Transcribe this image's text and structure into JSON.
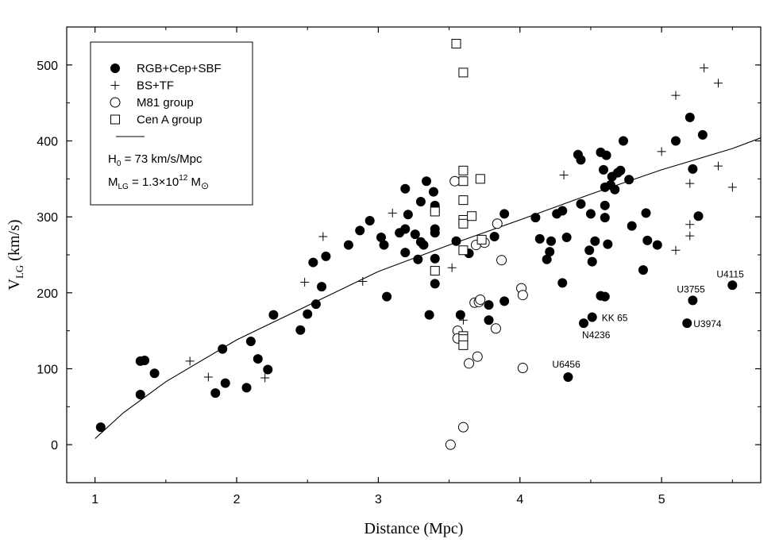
{
  "chart_data": {
    "type": "scatter",
    "xlabel": "Distance (Mpc)",
    "ylabel_main": "V",
    "ylabel_sub": "LG",
    "ylabel_unit": " (km/s)",
    "xlim": [
      0.8,
      5.7
    ],
    "ylim": [
      -50,
      550
    ],
    "xticks": [
      1,
      2,
      3,
      4,
      5
    ],
    "yticks": [
      0,
      100,
      200,
      300,
      400,
      500
    ],
    "grid": false,
    "legend_position": "top-left",
    "legend": [
      {
        "label": "RGB+Cep+SBF",
        "marker": "filled-circle"
      },
      {
        "label": "BS+TF",
        "marker": "plus"
      },
      {
        "label": "M81 group",
        "marker": "open-circle"
      },
      {
        "label": "Cen A group",
        "marker": "open-square"
      }
    ],
    "legend_line": "",
    "legend_h0": "H₀ = 73 km/s/Mpc",
    "legend_h0_parts": {
      "a": "H",
      "sub": "0",
      "b": " = 73 km/s/Mpc"
    },
    "legend_mlg_parts": {
      "a": "M",
      "sub": "LG",
      "b": " = 1.3×10",
      "sup": "12",
      "c": " M",
      "sub2": "⊙"
    },
    "series": [
      {
        "name": "RGB+Cep+SBF",
        "marker": "filled-circle",
        "points": [
          [
            1.04,
            23
          ],
          [
            1.32,
            66
          ],
          [
            1.32,
            110
          ],
          [
            1.35,
            111
          ],
          [
            1.42,
            94
          ],
          [
            1.85,
            68
          ],
          [
            1.9,
            126
          ],
          [
            1.92,
            81
          ],
          [
            2.07,
            75
          ],
          [
            2.1,
            136
          ],
          [
            2.15,
            113
          ],
          [
            2.22,
            99
          ],
          [
            2.26,
            171
          ],
          [
            2.45,
            151
          ],
          [
            2.5,
            172
          ],
          [
            2.54,
            240
          ],
          [
            2.56,
            185
          ],
          [
            2.6,
            208
          ],
          [
            2.63,
            248
          ],
          [
            2.79,
            263
          ],
          [
            2.87,
            282
          ],
          [
            2.94,
            295
          ],
          [
            3.02,
            273
          ],
          [
            3.04,
            263
          ],
          [
            3.06,
            195
          ],
          [
            3.15,
            279
          ],
          [
            3.19,
            253
          ],
          [
            3.19,
            284
          ],
          [
            3.19,
            337
          ],
          [
            3.21,
            303
          ],
          [
            3.26,
            277
          ],
          [
            3.28,
            244
          ],
          [
            3.3,
            320
          ],
          [
            3.3,
            267
          ],
          [
            3.32,
            263
          ],
          [
            3.34,
            347
          ],
          [
            3.36,
            171
          ],
          [
            3.39,
            333
          ],
          [
            3.4,
            315
          ],
          [
            3.4,
            307
          ],
          [
            3.4,
            284
          ],
          [
            3.4,
            279
          ],
          [
            3.4,
            245
          ],
          [
            3.4,
            212
          ],
          [
            3.55,
            268
          ],
          [
            3.58,
            171
          ],
          [
            3.64,
            252
          ],
          [
            3.78,
            184
          ],
          [
            3.78,
            164
          ],
          [
            3.82,
            274
          ],
          [
            3.89,
            304
          ],
          [
            3.89,
            189
          ],
          [
            4.11,
            299
          ],
          [
            4.14,
            271
          ],
          [
            4.19,
            244
          ],
          [
            4.21,
            254
          ],
          [
            4.22,
            268
          ],
          [
            4.26,
            304
          ],
          [
            4.3,
            308
          ],
          [
            4.3,
            213
          ],
          [
            4.33,
            273
          ],
          [
            4.34,
            89
          ],
          [
            4.41,
            382
          ],
          [
            4.43,
            375
          ],
          [
            4.43,
            317
          ],
          [
            4.45,
            160
          ],
          [
            4.49,
            256
          ],
          [
            4.5,
            304
          ],
          [
            4.51,
            241
          ],
          [
            4.51,
            168
          ],
          [
            4.53,
            268
          ],
          [
            4.57,
            385
          ],
          [
            4.57,
            196
          ],
          [
            4.59,
            362
          ],
          [
            4.6,
            339
          ],
          [
            4.6,
            315
          ],
          [
            4.6,
            299
          ],
          [
            4.6,
            195
          ],
          [
            4.61,
            381
          ],
          [
            4.62,
            264
          ],
          [
            4.64,
            342
          ],
          [
            4.65,
            353
          ],
          [
            4.67,
            336
          ],
          [
            4.69,
            358
          ],
          [
            4.71,
            361
          ],
          [
            4.73,
            400
          ],
          [
            4.77,
            349
          ],
          [
            4.79,
            288
          ],
          [
            4.87,
            230
          ],
          [
            4.89,
            305
          ],
          [
            4.9,
            269
          ],
          [
            4.97,
            263
          ],
          [
            5.1,
            400
          ],
          [
            5.18,
            160
          ],
          [
            5.2,
            431
          ],
          [
            5.22,
            363
          ],
          [
            5.22,
            190
          ],
          [
            5.26,
            301
          ],
          [
            5.29,
            408
          ],
          [
            5.5,
            210
          ]
        ]
      },
      {
        "name": "BS+TF",
        "marker": "plus",
        "points": [
          [
            1.67,
            110
          ],
          [
            1.8,
            89
          ],
          [
            2.2,
            88
          ],
          [
            2.48,
            214
          ],
          [
            2.61,
            274
          ],
          [
            2.89,
            215
          ],
          [
            3.1,
            305
          ],
          [
            3.52,
            233
          ],
          [
            3.6,
            164
          ],
          [
            4.31,
            355
          ],
          [
            5.0,
            386
          ],
          [
            5.1,
            256
          ],
          [
            5.1,
            460
          ],
          [
            5.2,
            344
          ],
          [
            5.2,
            290
          ],
          [
            5.2,
            275
          ],
          [
            5.3,
            496
          ],
          [
            5.4,
            476
          ],
          [
            5.4,
            367
          ],
          [
            5.5,
            339
          ]
        ]
      },
      {
        "name": "M81 group",
        "marker": "open-circle",
        "points": [
          [
            3.51,
            0
          ],
          [
            3.54,
            347
          ],
          [
            3.56,
            150
          ],
          [
            3.56,
            140
          ],
          [
            3.6,
            23
          ],
          [
            3.64,
            107
          ],
          [
            3.68,
            187
          ],
          [
            3.69,
            263
          ],
          [
            3.7,
            116
          ],
          [
            3.71,
            188
          ],
          [
            3.72,
            191
          ],
          [
            3.75,
            266
          ],
          [
            3.83,
            153
          ],
          [
            3.84,
            291
          ],
          [
            3.87,
            243
          ],
          [
            4.01,
            206
          ],
          [
            4.02,
            197
          ],
          [
            4.02,
            101
          ]
        ]
      },
      {
        "name": "Cen A group",
        "marker": "open-square",
        "points": [
          [
            3.4,
            307
          ],
          [
            3.4,
            229
          ],
          [
            3.55,
            528
          ],
          [
            3.6,
            490
          ],
          [
            3.6,
            361
          ],
          [
            3.6,
            347
          ],
          [
            3.6,
            322
          ],
          [
            3.6,
            296
          ],
          [
            3.6,
            291
          ],
          [
            3.6,
            256
          ],
          [
            3.6,
            143
          ],
          [
            3.6,
            139
          ],
          [
            3.6,
            131
          ],
          [
            3.66,
            301
          ],
          [
            3.72,
            350
          ],
          [
            3.73,
            270
          ]
        ]
      }
    ],
    "model_curve": {
      "label": "H0 = 73 km/s/Mpc, MLG = 1.3x10^12 Msun",
      "points": [
        [
          1.0,
          8
        ],
        [
          1.2,
          42
        ],
        [
          1.5,
          83
        ],
        [
          2.0,
          138
        ],
        [
          2.5,
          183
        ],
        [
          3.0,
          228
        ],
        [
          3.5,
          263
        ],
        [
          4.0,
          296
        ],
        [
          4.5,
          330
        ],
        [
          5.0,
          362
        ],
        [
          5.5,
          390
        ],
        [
          5.7,
          404
        ]
      ]
    },
    "annotations": [
      {
        "text": "KK 65",
        "x": 4.51,
        "y": 168,
        "dx": 12,
        "dy": 5
      },
      {
        "text": "N4236",
        "x": 4.45,
        "y": 160,
        "dx": -2,
        "dy": 19
      },
      {
        "text": "U6456",
        "x": 4.34,
        "y": 89,
        "dx": -20,
        "dy": -12
      },
      {
        "text": "U3755",
        "x": 5.22,
        "y": 190,
        "dx": -20,
        "dy": -10
      },
      {
        "text": "U3974",
        "x": 5.18,
        "y": 160,
        "dx": 8,
        "dy": 5
      },
      {
        "text": "U4115",
        "x": 5.5,
        "y": 210,
        "dx": -20,
        "dy": -10
      }
    ]
  }
}
